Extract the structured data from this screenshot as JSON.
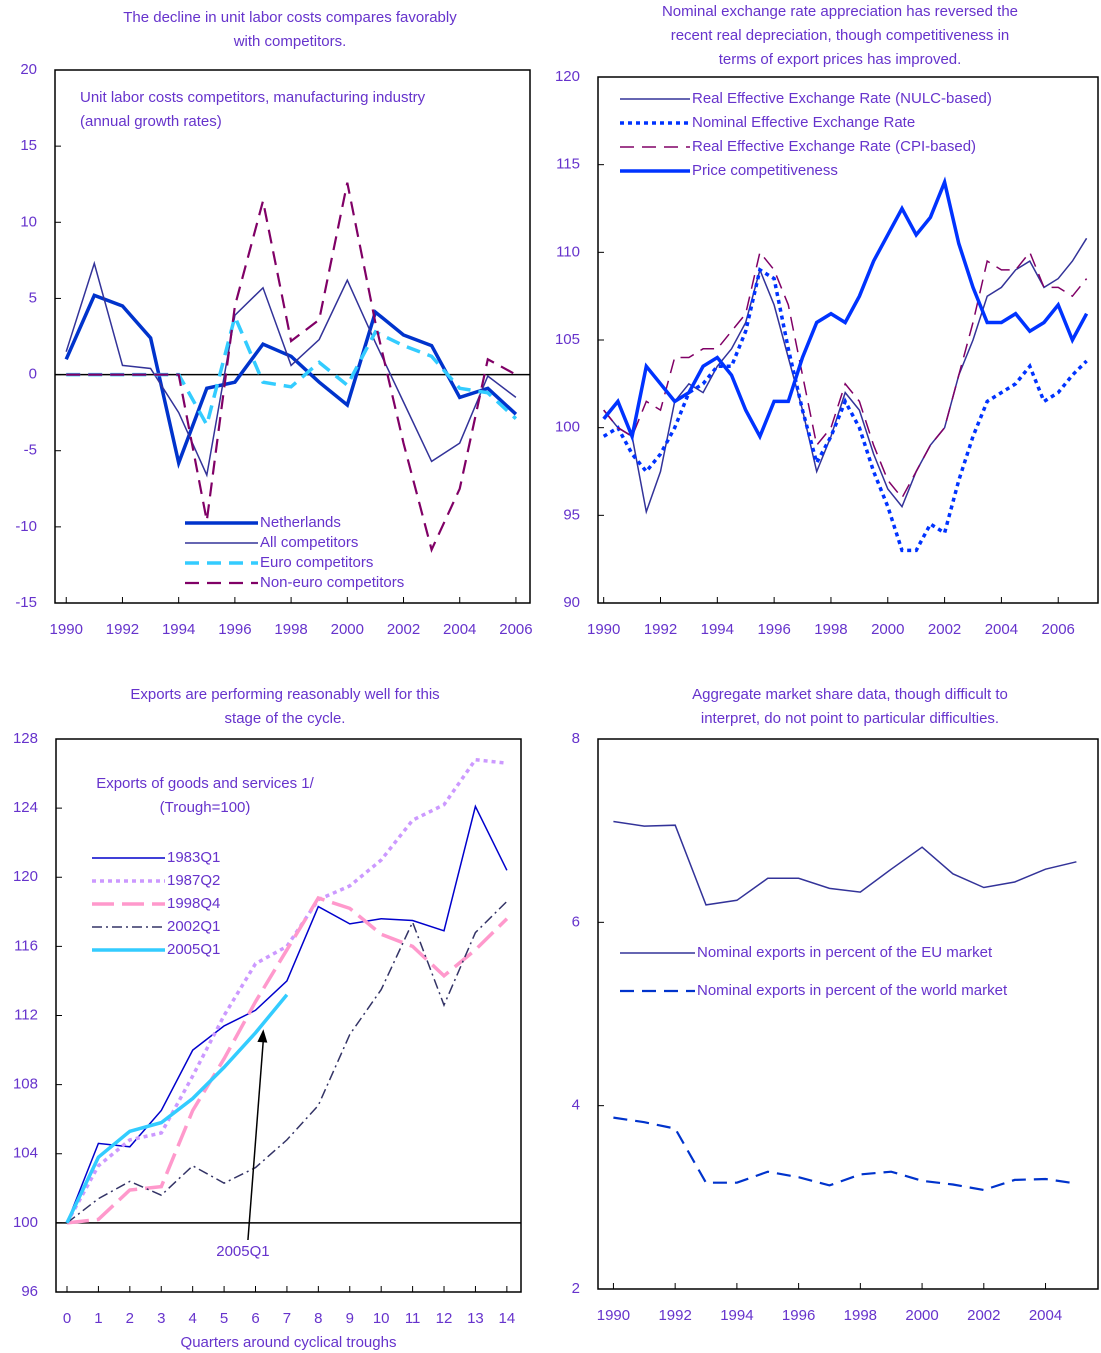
{
  "chart_data": [
    {
      "type": "line",
      "title": [
        "The decline in unit labor costs compares favorably",
        "with competitors."
      ],
      "annotation": [
        "Unit labor costs competitors, manufacturing industry",
        "(annual growth rates)"
      ],
      "x": [
        1990,
        1991,
        1992,
        1993,
        1994,
        1995,
        1996,
        1997,
        1998,
        1999,
        2000,
        2001,
        2002,
        2003,
        2004,
        2005,
        2006
      ],
      "xlim": [
        1989.6,
        2006.5
      ],
      "xticks": [
        1990,
        1992,
        1994,
        1996,
        1998,
        2000,
        2002,
        2004,
        2006
      ],
      "ylim": [
        -15,
        20
      ],
      "yticks": [
        -15,
        -10,
        -5,
        0,
        5,
        10,
        15,
        20
      ],
      "baseline": 0,
      "legend": "lower center",
      "series": [
        {
          "name": "Netherlands",
          "color": "#0033cc",
          "dash": "solid",
          "weight": "thick",
          "values": [
            1.0,
            5.2,
            4.5,
            2.4,
            -5.8,
            -0.9,
            -0.5,
            2.0,
            1.2,
            -0.5,
            -2.0,
            4.1,
            2.6,
            1.9,
            -1.5,
            -0.9,
            -2.6
          ]
        },
        {
          "name": "All competitors",
          "color": "#333399",
          "dash": "solid",
          "weight": "thin",
          "values": [
            1.5,
            7.3,
            0.6,
            0.4,
            -2.5,
            -6.6,
            3.9,
            5.7,
            0.6,
            2.3,
            6.2,
            2.1,
            -1.8,
            -5.7,
            -4.5,
            -0.1,
            -1.5
          ]
        },
        {
          "name": "Euro competitors",
          "color": "#33ccff",
          "dash": "dash",
          "weight": "thick",
          "values": [
            0,
            0,
            0,
            0,
            0,
            -3.3,
            3.8,
            -0.5,
            -0.8,
            0.8,
            -0.7,
            2.8,
            1.9,
            1.2,
            -0.9,
            -1.2,
            -2.9
          ]
        },
        {
          "name": "Non-euro competitors",
          "color": "#800066",
          "dash": "dash",
          "weight": "medium",
          "values": [
            0,
            0,
            0,
            0,
            0,
            -9.6,
            4.5,
            11.4,
            2.2,
            3.6,
            12.6,
            3.4,
            -4.5,
            -11.5,
            -7.5,
            1.0,
            0
          ]
        }
      ]
    },
    {
      "type": "line",
      "title": [
        "Nominal exchange rate appreciation has reversed the",
        "recent real depreciation, though competitiveness in",
        "terms of export prices has improved."
      ],
      "x": [
        1990,
        1990.5,
        1991,
        1991.5,
        1992,
        1992.5,
        1993,
        1993.5,
        1994,
        1994.5,
        1995,
        1995.5,
        1996,
        1996.5,
        1997,
        1997.5,
        1998,
        1998.5,
        1999,
        1999.5,
        2000,
        2000.5,
        2001,
        2001.5,
        2002,
        2002.5,
        2003,
        2003.5,
        2004,
        2004.5,
        2005,
        2005.5,
        2006,
        2006.5,
        2007
      ],
      "xlim": [
        1989.8,
        2007.4
      ],
      "xticks": [
        1990,
        1992,
        1994,
        1996,
        1998,
        2000,
        2002,
        2004,
        2006
      ],
      "ylim": [
        90,
        120
      ],
      "yticks": [
        90,
        95,
        100,
        105,
        110,
        115,
        120
      ],
      "legend": "upper left",
      "series": [
        {
          "name": "Real Effective Exchange Rate (NULC-based)",
          "color": "#333399",
          "dash": "solid",
          "weight": "thin",
          "values": [
            101,
            100,
            99.5,
            95.2,
            97.5,
            101.5,
            102.5,
            102,
            103.5,
            104.5,
            106,
            109,
            107,
            104,
            101,
            97.5,
            99.5,
            102,
            101,
            98.5,
            96.5,
            95.5,
            97.5,
            99,
            100,
            103,
            105,
            107.5,
            108,
            109,
            109.5,
            108,
            108.5,
            109.5,
            110.8
          ]
        },
        {
          "name": "Nominal Effective Exchange Rate",
          "color": "#0033ff",
          "dash": "dot",
          "weight": "thick",
          "values": [
            99.5,
            100,
            98.5,
            97.5,
            98.5,
            100,
            102,
            102.5,
            103.5,
            103.5,
            105.5,
            109,
            108.5,
            104.5,
            101,
            98,
            99.5,
            101.5,
            100,
            97.5,
            95.5,
            93,
            93,
            94.5,
            94,
            97,
            99.5,
            101.5,
            102,
            102.5,
            103.5,
            101.5,
            102,
            103,
            103.8
          ]
        },
        {
          "name": "Real Effective Exchange Rate (CPI-based)",
          "color": "#800066",
          "dash": "dash",
          "weight": "thin",
          "values": [
            101,
            100,
            99.5,
            101.5,
            101,
            104,
            104,
            104.5,
            104.5,
            105.5,
            106.5,
            110,
            109,
            107,
            103,
            99,
            100,
            102.5,
            101.5,
            99,
            97,
            96,
            97.5,
            99,
            100,
            103,
            106,
            109.5,
            109,
            109,
            110,
            108,
            108,
            107.5,
            108.5
          ]
        },
        {
          "name": "Price competitiveness",
          "color": "#0033ff",
          "dash": "solid",
          "weight": "thick",
          "values": [
            100.5,
            101.5,
            99.5,
            103.5,
            102.5,
            101.5,
            102,
            103.5,
            104,
            103,
            101,
            99.5,
            101.5,
            101.5,
            104,
            106,
            106.5,
            106,
            107.5,
            109.5,
            111,
            112.5,
            111,
            112,
            114,
            110.5,
            108,
            106,
            106,
            106.5,
            105.5,
            106,
            107,
            105,
            106.5
          ]
        }
      ]
    },
    {
      "type": "line",
      "title": [
        "Exports are performing reasonably well for this",
        "stage of the cycle."
      ],
      "annotation": [
        "Exports of goods and services 1/",
        "(Trough=100)"
      ],
      "xlabel": "Quarters around cyclical troughs",
      "arrow_label": "2005Q1",
      "x": [
        0,
        1,
        2,
        3,
        4,
        5,
        6,
        7,
        8,
        9,
        10,
        11,
        12,
        13,
        14
      ],
      "xlim": [
        -0.35,
        14.45
      ],
      "xticks": [
        0,
        1,
        2,
        3,
        4,
        5,
        6,
        7,
        8,
        9,
        10,
        11,
        12,
        13,
        14
      ],
      "ylim": [
        96,
        128
      ],
      "yticks": [
        96,
        100,
        104,
        108,
        112,
        116,
        120,
        124,
        128
      ],
      "baseline": 100,
      "legend": "center left",
      "series": [
        {
          "name": "1983Q1",
          "color": "#0000cc",
          "dash": "solid",
          "weight": "thin",
          "values": [
            100,
            104.6,
            104.4,
            106.5,
            110,
            111.4,
            112.3,
            114,
            118.3,
            117.3,
            117.6,
            117.5,
            116.9,
            124.1,
            120.4
          ]
        },
        {
          "name": "1987Q2",
          "color": "#cc99ff",
          "dash": "dot",
          "weight": "thick",
          "values": [
            100,
            103.3,
            104.8,
            105.2,
            108.5,
            112,
            115,
            116,
            118.7,
            119.5,
            121,
            123.3,
            124.2,
            126.8,
            126.6
          ]
        },
        {
          "name": "1998Q4",
          "color": "#ff99cc",
          "dash": "longdash",
          "weight": "thick",
          "values": [
            100,
            100.2,
            101.9,
            102.1,
            106.5,
            109.5,
            112.8,
            115.8,
            118.8,
            118.2,
            116.7,
            116,
            114.3,
            115.8,
            117.6
          ]
        },
        {
          "name": "2002Q1",
          "color": "#333366",
          "dash": "dashdot",
          "weight": "thin",
          "values": [
            100,
            101.4,
            102.4,
            101.6,
            103.3,
            102.3,
            103.2,
            104.8,
            106.8,
            110.9,
            113.5,
            117.4,
            112.6,
            116.8,
            118.6
          ]
        },
        {
          "name": "2005Q1",
          "color": "#33ccff",
          "dash": "solid",
          "weight": "thick",
          "values": [
            100,
            103.8,
            105.3,
            105.8,
            107.2,
            109,
            111,
            113.2,
            null,
            null,
            null,
            null,
            null,
            null,
            null
          ]
        }
      ]
    },
    {
      "type": "line",
      "title": [
        "Aggregate market share data, though difficult to",
        "interpret, do not point to particular difficulties."
      ],
      "x": [
        1990,
        1991,
        1992,
        1993,
        1994,
        1995,
        1996,
        1997,
        1998,
        1999,
        2000,
        2001,
        2002,
        2003,
        2004,
        2005
      ],
      "xlim": [
        1989.5,
        2005.7
      ],
      "xticks": [
        1990,
        1992,
        1994,
        1996,
        1998,
        2000,
        2002,
        2004
      ],
      "ylim": [
        2,
        8
      ],
      "yticks": [
        2,
        4,
        6,
        8
      ],
      "legend": "center",
      "series": [
        {
          "name": "Nominal exports in percent of the EU market",
          "color": "#333399",
          "dash": "solid",
          "weight": "thin",
          "values": [
            7.1,
            7.05,
            7.06,
            6.19,
            6.24,
            6.48,
            6.48,
            6.37,
            6.33,
            6.58,
            6.82,
            6.53,
            6.38,
            6.44,
            6.58,
            6.66
          ]
        },
        {
          "name": "Nominal exports in percent of the world market",
          "color": "#0033cc",
          "dash": "dash",
          "weight": "medium",
          "values": [
            3.87,
            3.82,
            3.75,
            3.16,
            3.16,
            3.28,
            3.22,
            3.13,
            3.25,
            3.28,
            3.18,
            3.14,
            3.08,
            3.19,
            3.2,
            3.15
          ]
        }
      ]
    }
  ]
}
